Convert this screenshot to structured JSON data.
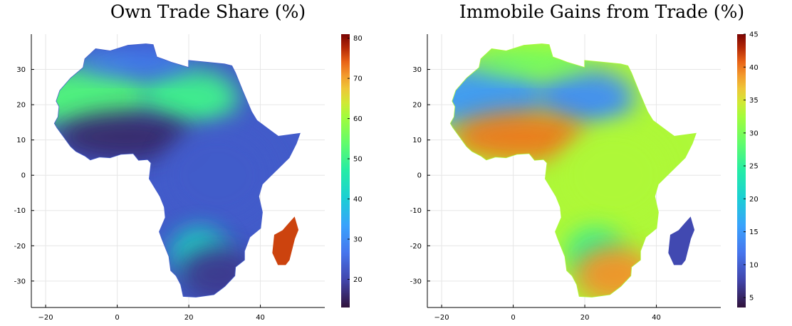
{
  "chart_data": [
    {
      "type": "heatmap",
      "title": "Own Trade Share (%)",
      "xlabel": "",
      "ylabel": "",
      "xlim": [
        -24,
        58
      ],
      "ylim": [
        -37.5,
        40
      ],
      "x_ticks": [
        -20,
        0,
        20,
        40
      ],
      "y_ticks": [
        30,
        20,
        10,
        0,
        -10,
        -20,
        -30
      ],
      "colorbar": {
        "min": 13,
        "max": 81,
        "ticks": [
          80,
          70,
          60,
          50,
          40,
          30,
          20
        ]
      },
      "colormap": "turbo",
      "grid": true,
      "legend": "colorbar-right",
      "regions": [
        {
          "lon": -8,
          "lat": 22,
          "value": 52
        },
        {
          "lon": 20,
          "lat": 22,
          "value": 50
        },
        {
          "lon": 5,
          "lat": 32,
          "value": 28
        },
        {
          "lon": 2,
          "lat": 11,
          "value": 16
        },
        {
          "lon": 28,
          "lat": 0,
          "value": 23
        },
        {
          "lon": 23,
          "lat": -22,
          "value": 43
        },
        {
          "lon": 28,
          "lat": -28,
          "value": 18
        },
        {
          "lon": 47,
          "lat": -19,
          "value": 76
        }
      ]
    },
    {
      "type": "heatmap",
      "title": "Immobile Gains from Trade (%)",
      "xlabel": "",
      "ylabel": "",
      "xlim": [
        -24,
        58
      ],
      "ylim": [
        -37.5,
        40
      ],
      "x_ticks": [
        -20,
        0,
        20,
        40
      ],
      "y_ticks": [
        30,
        20,
        10,
        0,
        -10,
        -20,
        -30
      ],
      "colorbar": {
        "min": 3.5,
        "max": 45,
        "ticks": [
          45,
          40,
          35,
          30,
          25,
          20,
          15,
          10,
          5
        ]
      },
      "colormap": "turbo",
      "grid": true,
      "legend": "colorbar-right",
      "regions": [
        {
          "lon": -8,
          "lat": 22,
          "value": 15
        },
        {
          "lon": 20,
          "lat": 22,
          "value": 14
        },
        {
          "lon": 5,
          "lat": 32,
          "value": 29
        },
        {
          "lon": 2,
          "lat": 11,
          "value": 40
        },
        {
          "lon": 28,
          "lat": 0,
          "value": 33
        },
        {
          "lon": 23,
          "lat": -22,
          "value": 25
        },
        {
          "lon": 28,
          "lat": -28,
          "value": 39
        },
        {
          "lon": 47,
          "lat": -19,
          "value": 8
        }
      ]
    }
  ]
}
